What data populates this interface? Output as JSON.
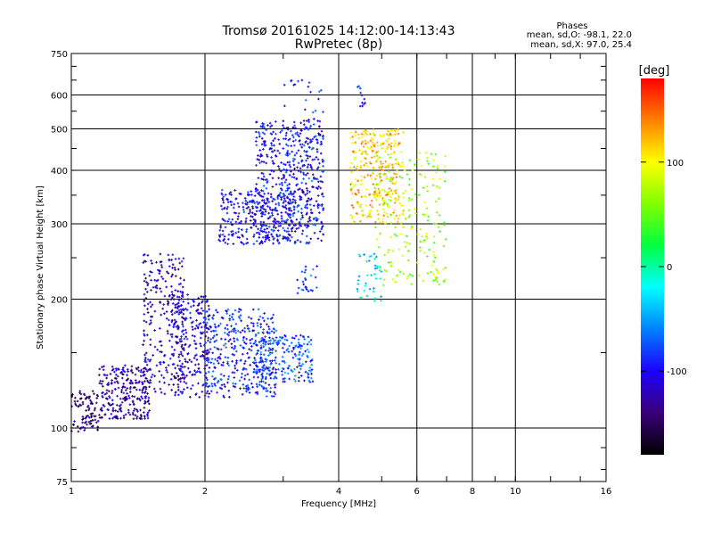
{
  "chart_data": {
    "type": "scatter",
    "title": "Tromsø 20161025 14:12:00-14:13:43",
    "subtitle": "RwPretec (8p)",
    "xlabel": "Frequency [MHz]",
    "ylabel": "Stationary phase Virtual Height [km]",
    "x_scale": "log",
    "y_scale": "log",
    "xlim": [
      1,
      16
    ],
    "ylim": [
      75,
      750
    ],
    "x_ticks": [
      1,
      2,
      4,
      6,
      8,
      10,
      16
    ],
    "y_ticks": [
      75,
      100,
      200,
      300,
      400,
      500,
      600,
      750
    ],
    "grid": true,
    "legend": {
      "title": "Phases",
      "lines": [
        "mean, sd,O: -98.1, 22.0",
        "mean, sd,X:  97.0, 25.4"
      ],
      "position": "top-right"
    },
    "colorbar": {
      "label": "[deg]",
      "range": [
        -180,
        180
      ],
      "ticks": [
        100,
        0,
        -100
      ],
      "colors": [
        "#000000",
        "#3a0078",
        "#1c00ff",
        "#0080ff",
        "#00ffff",
        "#00ff40",
        "#80ff00",
        "#ffff00",
        "#ff8000",
        "#ff0000"
      ]
    },
    "clusters": [
      {
        "name": "",
        "x_range": [
          1.0,
          1.15
        ],
        "y_range": [
          98,
          122
        ],
        "phase": -140,
        "points": 90,
        "seed": 1
      },
      {
        "name": "",
        "x_range": [
          1.15,
          1.5
        ],
        "y_range": [
          105,
          140
        ],
        "phase": -125,
        "points": 240,
        "seed": 2
      },
      {
        "name": "",
        "x_range": [
          1.45,
          1.8
        ],
        "y_range": [
          120,
          255
        ],
        "phase": -120,
        "points": 260,
        "seed": 3
      },
      {
        "name": "",
        "x_range": [
          1.7,
          2.05
        ],
        "y_range": [
          118,
          205
        ],
        "phase": -112,
        "points": 230,
        "seed": 4
      },
      {
        "name": "",
        "x_range": [
          2.0,
          2.9
        ],
        "y_range": [
          118,
          190
        ],
        "phase": -92,
        "points": 360,
        "seed": 5
      },
      {
        "name": "",
        "x_range": [
          2.6,
          3.5
        ],
        "y_range": [
          128,
          165
        ],
        "phase": -75,
        "points": 200,
        "seed": 6
      },
      {
        "name": "",
        "x_range": [
          3.2,
          3.6
        ],
        "y_range": [
          205,
          240
        ],
        "phase": -85,
        "points": 25,
        "seed": 7
      },
      {
        "name": "",
        "x_range": [
          2.15,
          3.2
        ],
        "y_range": [
          268,
          360
        ],
        "phase": -105,
        "points": 300,
        "seed": 8
      },
      {
        "name": "",
        "x_range": [
          2.6,
          3.7
        ],
        "y_range": [
          270,
          520
        ],
        "phase": -100,
        "points": 420,
        "seed": 9
      },
      {
        "name": "",
        "x_range": [
          3.0,
          3.7
        ],
        "y_range": [
          290,
          650
        ],
        "phase": -90,
        "points": 120,
        "seed": 10
      },
      {
        "name": "",
        "x_range": [
          4.25,
          5.6
        ],
        "y_range": [
          300,
          500
        ],
        "phase": 115,
        "points": 300,
        "seed": 11
      },
      {
        "name": "",
        "x_range": [
          4.8,
          7.0
        ],
        "y_range": [
          215,
          440
        ],
        "phase": 70,
        "points": 200,
        "seed": 12
      },
      {
        "name": "",
        "x_range": [
          4.4,
          5.0
        ],
        "y_range": [
          198,
          260
        ],
        "phase": -30,
        "points": 40,
        "seed": 13
      },
      {
        "name": "",
        "x_range": [
          4.4,
          4.6
        ],
        "y_range": [
          560,
          630
        ],
        "phase": -100,
        "points": 12,
        "seed": 14
      }
    ]
  }
}
